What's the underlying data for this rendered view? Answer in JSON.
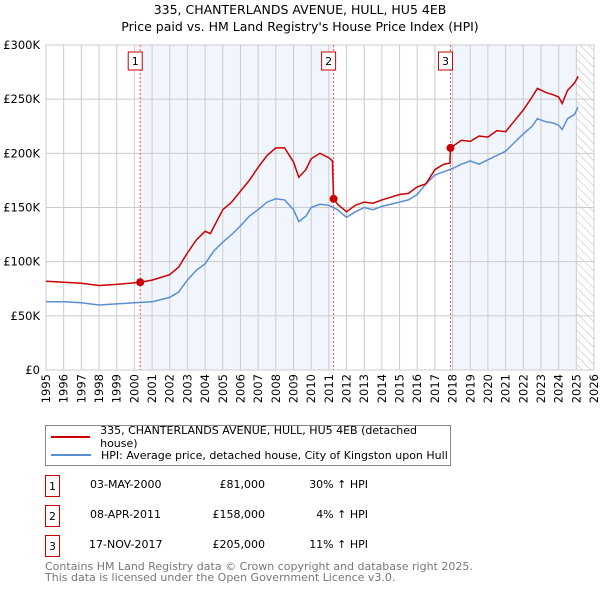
{
  "title": "335, CHANTERLANDS AVENUE, HULL, HU5 4EB",
  "subtitle": "Price paid vs. HM Land Registry's House Price Index (HPI)",
  "legend": [
    {
      "label": "335, CHANTERLANDS AVENUE, HULL, HU5 4EB (detached house)",
      "color": "#cc0000"
    },
    {
      "label": "HPI: Average price, detached house, City of Kingston upon Hull",
      "color": "#5b8fd0"
    }
  ],
  "sales": [
    {
      "num": "1",
      "date": "03-MAY-2000",
      "price": "£81,000",
      "hpi": "30% ↑ HPI"
    },
    {
      "num": "2",
      "date": "08-APR-2011",
      "price": "£158,000",
      "hpi": "4% ↑ HPI"
    },
    {
      "num": "3",
      "date": "17-NOV-2017",
      "price": "£205,000",
      "hpi": "11% ↑ HPI"
    }
  ],
  "footer": [
    "Contains HM Land Registry data © Crown copyright and database right 2025.",
    "This data is licensed under the Open Government Licence v3.0."
  ],
  "chart_data": {
    "type": "line",
    "xlim": [
      1995,
      2026
    ],
    "ylim": [
      0,
      300000
    ],
    "yticks": [
      0,
      50000,
      100000,
      150000,
      200000,
      250000,
      300000
    ],
    "ytick_labels": [
      "£0",
      "£50K",
      "£100K",
      "£150K",
      "£200K",
      "£250K",
      "£300K"
    ],
    "xticks": [
      "1995",
      "1996",
      "1997",
      "1998",
      "1999",
      "2000",
      "2001",
      "2002",
      "2003",
      "2004",
      "2005",
      "2006",
      "2007",
      "2008",
      "2009",
      "2010",
      "2011",
      "2012",
      "2013",
      "2014",
      "2015",
      "2016",
      "2017",
      "2018",
      "2019",
      "2020",
      "2021",
      "2022",
      "2023",
      "2024",
      "2025",
      "2026"
    ],
    "grid": true,
    "shaded_ranges": [
      [
        2000.33,
        2011.27
      ],
      [
        2017.88,
        2025.0
      ]
    ],
    "hatched_from": 2025.0,
    "markers": [
      {
        "label": "1",
        "x": 2000.33,
        "y": 81000
      },
      {
        "label": "2",
        "x": 2011.27,
        "y": 158000
      },
      {
        "label": "3",
        "x": 2017.88,
        "y": 205000
      }
    ],
    "series": [
      {
        "name": "335, CHANTERLANDS AVENUE, HULL, HU5 4EB (detached house)",
        "color": "#cc0000",
        "x": [
          1995,
          1996,
          1997,
          1998,
          1999,
          2000.33,
          2001,
          2002,
          2002.5,
          2003,
          2003.5,
          2004,
          2004.3,
          2005,
          2005.5,
          2006,
          2006.5,
          2007,
          2007.5,
          2008,
          2008.5,
          2009,
          2009.3,
          2009.7,
          2010,
          2010.5,
          2011,
          2011.2,
          2011.27,
          2011.5,
          2012,
          2012.5,
          2013,
          2013.5,
          2014,
          2015,
          2015.5,
          2016,
          2016.5,
          2017,
          2017.5,
          2017.85,
          2017.88,
          2018.5,
          2019,
          2019.5,
          2020,
          2020.5,
          2021,
          2021.5,
          2022,
          2022.5,
          2022.8,
          2023.3,
          2023.7,
          2024,
          2024.2,
          2024.5,
          2024.9,
          2025.1
        ],
        "y": [
          82000,
          81000,
          80000,
          78000,
          79000,
          81000,
          83000,
          88000,
          95000,
          108000,
          120000,
          128000,
          126000,
          148000,
          155000,
          165000,
          175000,
          187000,
          198000,
          205000,
          205000,
          192000,
          178000,
          185000,
          195000,
          200000,
          196000,
          193000,
          158000,
          153000,
          146000,
          152000,
          155000,
          154000,
          157000,
          162000,
          163000,
          169000,
          172000,
          185000,
          190000,
          191000,
          205000,
          212000,
          211000,
          216000,
          215000,
          221000,
          220000,
          230000,
          240000,
          252000,
          260000,
          256000,
          254000,
          252000,
          246000,
          258000,
          265000,
          271000
        ]
      },
      {
        "name": "HPI: Average price, detached house, City of Kingston upon Hull",
        "color": "#5b8fd0",
        "x": [
          1995,
          1996,
          1997,
          1998,
          1999,
          2000,
          2001,
          2002,
          2002.5,
          2003,
          2003.5,
          2004,
          2004.5,
          2005,
          2005.5,
          2006,
          2006.5,
          2007,
          2007.5,
          2008,
          2008.5,
          2009,
          2009.3,
          2009.7,
          2010,
          2010.5,
          2011,
          2011.5,
          2012,
          2012.5,
          2013,
          2013.5,
          2014,
          2015,
          2015.5,
          2016,
          2016.5,
          2017,
          2017.5,
          2018,
          2018.5,
          2019,
          2019.5,
          2020,
          2020.5,
          2021,
          2021.5,
          2022,
          2022.5,
          2022.8,
          2023.3,
          2023.7,
          2024,
          2024.2,
          2024.5,
          2024.9,
          2025.1
        ],
        "y": [
          63000,
          63000,
          62000,
          60000,
          61000,
          62000,
          63000,
          67000,
          72000,
          83000,
          92000,
          98000,
          110000,
          118000,
          125000,
          133000,
          142000,
          148000,
          155000,
          158000,
          157000,
          148000,
          137000,
          142000,
          150000,
          153000,
          152000,
          148000,
          141000,
          146000,
          150000,
          148000,
          151000,
          155000,
          157000,
          162000,
          172000,
          180000,
          183000,
          186000,
          190000,
          193000,
          190000,
          194000,
          198000,
          202000,
          210000,
          218000,
          225000,
          232000,
          229000,
          228000,
          226000,
          222000,
          232000,
          236000,
          243000
        ]
      }
    ]
  }
}
